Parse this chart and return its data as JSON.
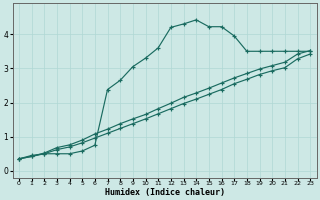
{
  "xlabel": "Humidex (Indice chaleur)",
  "bg_color": "#cde8e5",
  "line_color": "#1a6b60",
  "grid_color": "#b0d8d4",
  "xlim": [
    -0.5,
    23.5
  ],
  "ylim": [
    -0.2,
    4.9
  ],
  "xticks": [
    0,
    1,
    2,
    3,
    4,
    5,
    6,
    7,
    8,
    9,
    10,
    11,
    12,
    13,
    14,
    15,
    16,
    17,
    18,
    19,
    20,
    21,
    22,
    23
  ],
  "yticks": [
    0,
    1,
    2,
    3,
    4
  ],
  "curve1_x": [
    0,
    1,
    2,
    3,
    4,
    5,
    6,
    7,
    8,
    9,
    10,
    11,
    12,
    13,
    14,
    15,
    16,
    17,
    18,
    19,
    20,
    21,
    22,
    23
  ],
  "curve1_y": [
    0.35,
    0.45,
    0.5,
    0.5,
    0.5,
    0.58,
    0.75,
    2.38,
    2.65,
    3.05,
    3.3,
    3.6,
    4.2,
    4.3,
    4.42,
    4.22,
    4.22,
    3.95,
    3.5,
    3.5,
    3.5,
    3.5,
    3.5,
    3.5
  ],
  "curve2_x": [
    0,
    1,
    2,
    3,
    4,
    5,
    6,
    7,
    8,
    9,
    10,
    11,
    12,
    13,
    14,
    15,
    16,
    17,
    18,
    19,
    20,
    21,
    22,
    23
  ],
  "curve2_y": [
    0.35,
    0.42,
    0.52,
    0.68,
    0.76,
    0.9,
    1.08,
    1.22,
    1.38,
    1.52,
    1.65,
    1.82,
    1.98,
    2.15,
    2.28,
    2.42,
    2.57,
    2.72,
    2.85,
    2.98,
    3.08,
    3.18,
    3.42,
    3.52
  ],
  "curve3_x": [
    0,
    1,
    2,
    3,
    4,
    5,
    6,
    7,
    8,
    9,
    10,
    11,
    12,
    13,
    14,
    15,
    16,
    17,
    18,
    19,
    20,
    21,
    22,
    23
  ],
  "curve3_y": [
    0.35,
    0.42,
    0.5,
    0.62,
    0.7,
    0.82,
    0.96,
    1.1,
    1.24,
    1.38,
    1.52,
    1.67,
    1.82,
    1.97,
    2.1,
    2.24,
    2.38,
    2.55,
    2.68,
    2.82,
    2.93,
    3.02,
    3.28,
    3.42
  ]
}
